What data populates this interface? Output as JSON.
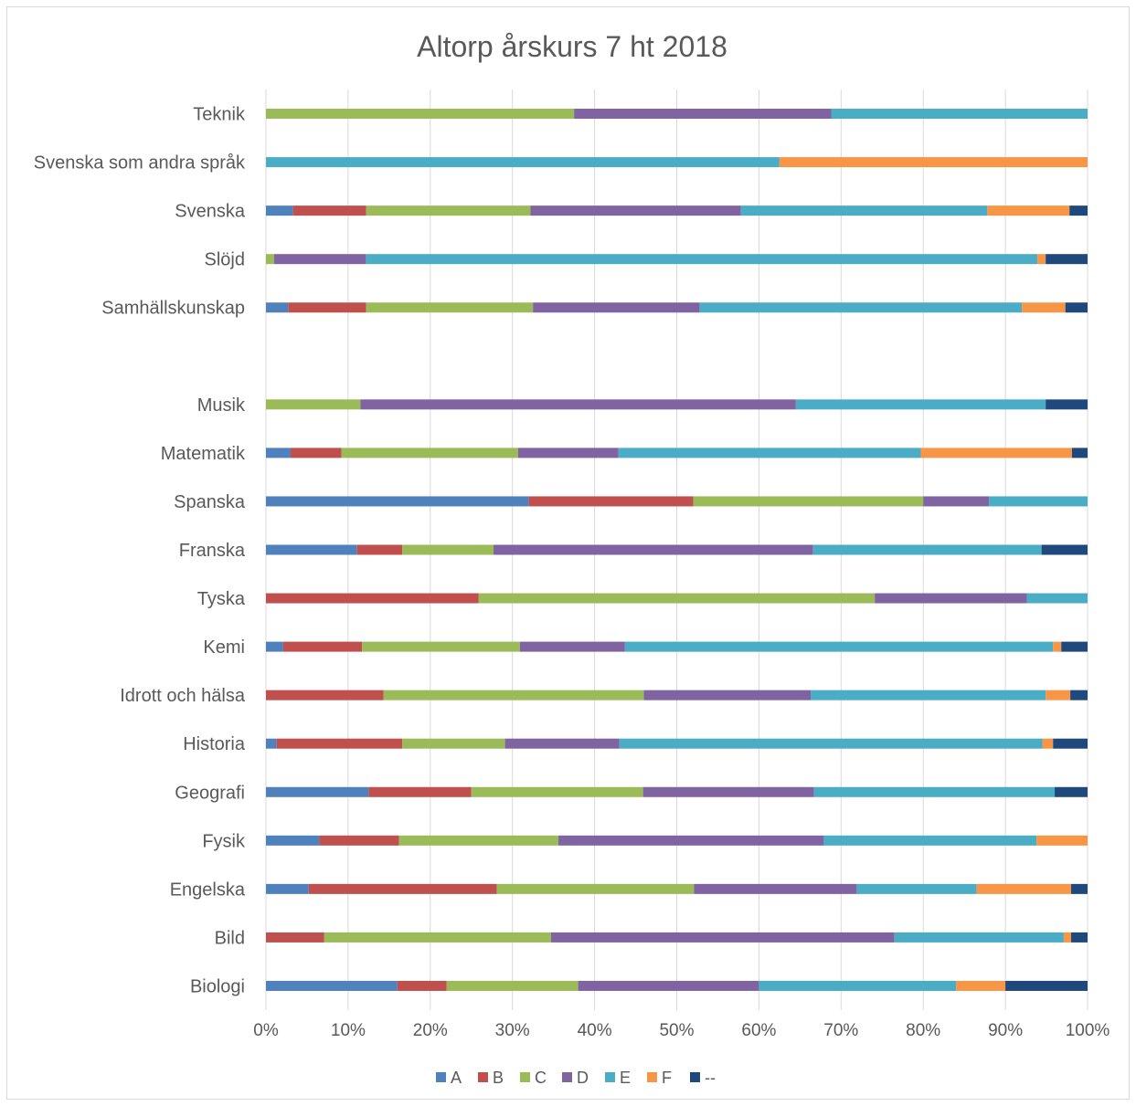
{
  "chart_data": {
    "type": "bar",
    "orientation": "horizontal",
    "stacked": "percent",
    "title": "Altorp årskurs 7 ht 2018",
    "xlabel": "",
    "ylabel": "",
    "xlim": [
      0,
      100
    ],
    "x_ticks": [
      "0%",
      "10%",
      "20%",
      "30%",
      "40%",
      "50%",
      "60%",
      "70%",
      "80%",
      "90%",
      "100%"
    ],
    "grid": "vertical",
    "legend_position": "bottom",
    "categories": [
      "Teknik",
      "Svenska som andra språk",
      "Svenska",
      "Slöjd",
      "Samhällskunskap",
      "",
      "Musik",
      "Matematik",
      "Spanska",
      "Franska",
      "Tyska",
      "Kemi",
      "Idrott och hälsa",
      "Historia",
      "Geografi",
      "Fysik",
      "Engelska",
      "Bild",
      "Biologi"
    ],
    "series": [
      {
        "name": "A",
        "color": "#4f81bd",
        "values": [
          0,
          0,
          3.3,
          0,
          2.7,
          0,
          0,
          3.0,
          32.0,
          11.1,
          0,
          2.1,
          0,
          1.3,
          12.5,
          6.5,
          5.2,
          0,
          16.0
        ]
      },
      {
        "name": "B",
        "color": "#c0504d",
        "values": [
          0,
          0,
          8.9,
          0,
          9.5,
          0,
          0,
          6.2,
          20.0,
          5.5,
          25.9,
          9.6,
          14.3,
          15.3,
          12.5,
          9.7,
          22.9,
          7.1,
          6.0
        ]
      },
      {
        "name": "C",
        "color": "#9bbb59",
        "values": [
          37.5,
          0,
          20.0,
          1.0,
          20.3,
          0,
          11.5,
          21.5,
          28.0,
          11.1,
          48.2,
          19.2,
          31.7,
          12.5,
          20.9,
          19.4,
          24.0,
          27.6,
          16.0
        ]
      },
      {
        "name": "D",
        "color": "#8064a2",
        "values": [
          31.3,
          0,
          25.6,
          11.2,
          20.3,
          0,
          53.0,
          12.2,
          8.0,
          38.9,
          18.5,
          12.8,
          20.3,
          13.9,
          20.8,
          32.3,
          19.8,
          41.8,
          22.0
        ]
      },
      {
        "name": "E",
        "color": "#4bacc6",
        "values": [
          31.2,
          62.5,
          30.0,
          81.7,
          39.2,
          0,
          30.4,
          36.8,
          12.0,
          27.8,
          7.4,
          52.1,
          28.6,
          51.5,
          29.3,
          25.9,
          14.6,
          20.6,
          24.0
        ]
      },
      {
        "name": "F",
        "color": "#f79646",
        "values": [
          0,
          37.5,
          10.0,
          1.0,
          5.3,
          0,
          0,
          18.4,
          0,
          0,
          0,
          1.0,
          3.0,
          1.3,
          0,
          6.2,
          11.5,
          0.9,
          6.0
        ]
      },
      {
        "name": "--",
        "color": "#1f497d",
        "values": [
          0,
          0,
          2.2,
          5.1,
          2.7,
          0,
          5.1,
          1.9,
          0,
          5.6,
          0,
          3.2,
          2.1,
          4.2,
          4.0,
          0,
          2.0,
          2.0,
          10.0
        ]
      }
    ]
  }
}
